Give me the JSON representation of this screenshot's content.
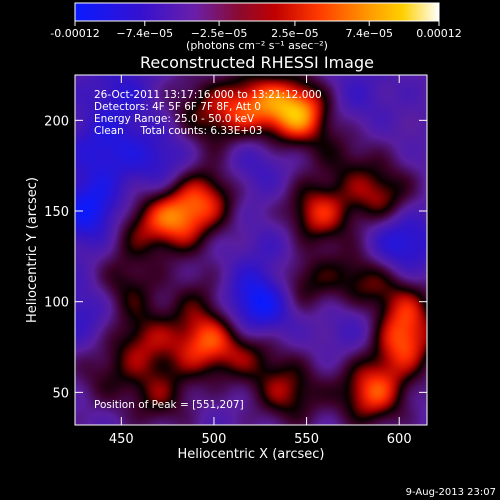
{
  "chart_data": {
    "type": "heatmap",
    "title": "Reconstructed RHESSI Image",
    "xlabel": "Heliocentric X (arcsec)",
    "ylabel": "Heliocentric Y (arcsec)",
    "xlim": [
      425,
      615
    ],
    "ylim": [
      32,
      225
    ],
    "x_ticks": [
      450,
      500,
      550,
      600
    ],
    "y_ticks": [
      50,
      100,
      150,
      200
    ],
    "x_tick_labels": [
      "450",
      "500",
      "550",
      "600"
    ],
    "y_tick_labels": [
      "50",
      "100",
      "150",
      "200"
    ],
    "colorbar": {
      "min": -0.00012,
      "max": 0.00012,
      "ticks": [
        -0.00012,
        -7.4e-05,
        -2.5e-05,
        2.5e-05,
        7.4e-05,
        0.00012
      ],
      "tick_labels": [
        "-0.00012",
        "−7.4e−05",
        "−2.5e−05",
        "2.5e−05",
        "7.4e−05",
        "0.00012"
      ],
      "unit_label": "(photons cm⁻² s⁻¹ asec⁻²)",
      "colors": [
        "#1020ff",
        "#3a10c8",
        "#6a22a8",
        "#a00000",
        "#ff3000",
        "#ff9a00",
        "#ffd400",
        "#ffffff"
      ]
    },
    "annotations": [
      "26-Oct-2011 13:17:16.000 to 13:21:12.000",
      "Detectors: 4F 5F 6F 7F 8F, Att 0",
      "Energy Range: 25.0 - 50.0 keV",
      "Clean     Total counts: 6.33E+03"
    ],
    "peak_label": "Position of Peak = [551,207]",
    "peak": [
      551,
      207
    ],
    "sources": [
      {
        "x": 545,
        "y": 205,
        "value": 1.0
      },
      {
        "x": 520,
        "y": 210,
        "value": 0.65
      },
      {
        "x": 500,
        "y": 200,
        "value": 0.4
      },
      {
        "x": 480,
        "y": 146,
        "value": 0.78
      },
      {
        "x": 497,
        "y": 160,
        "value": 0.55
      },
      {
        "x": 455,
        "y": 142,
        "value": 0.45
      },
      {
        "x": 555,
        "y": 148,
        "value": 0.72
      },
      {
        "x": 590,
        "y": 158,
        "value": 0.6
      },
      {
        "x": 452,
        "y": 108,
        "value": 0.42
      },
      {
        "x": 493,
        "y": 102,
        "value": 0.3
      },
      {
        "x": 545,
        "y": 112,
        "value": 0.6
      },
      {
        "x": 580,
        "y": 112,
        "value": 0.55
      },
      {
        "x": 602,
        "y": 97,
        "value": 0.5
      },
      {
        "x": 462,
        "y": 78,
        "value": 0.5
      },
      {
        "x": 495,
        "y": 77,
        "value": 0.72
      },
      {
        "x": 520,
        "y": 72,
        "value": 0.4
      },
      {
        "x": 602,
        "y": 77,
        "value": 0.7
      },
      {
        "x": 540,
        "y": 50,
        "value": 0.55
      },
      {
        "x": 585,
        "y": 50,
        "value": 0.78
      },
      {
        "x": 470,
        "y": 48,
        "value": 0.45
      },
      {
        "x": 440,
        "y": 60,
        "value": 0.3
      },
      {
        "x": 570,
        "y": 180,
        "value": 0.3
      },
      {
        "x": 485,
        "y": 212,
        "value": 0.2
      },
      {
        "x": 440,
        "y": 185,
        "value": -0.4
      },
      {
        "x": 435,
        "y": 150,
        "value": -0.7
      },
      {
        "x": 470,
        "y": 178,
        "value": -0.35
      },
      {
        "x": 525,
        "y": 100,
        "value": -0.8
      },
      {
        "x": 540,
        "y": 128,
        "value": -0.3
      },
      {
        "x": 600,
        "y": 133,
        "value": -0.55
      },
      {
        "x": 580,
        "y": 90,
        "value": -0.3
      },
      {
        "x": 575,
        "y": 212,
        "value": -0.2
      },
      {
        "x": 520,
        "y": 175,
        "value": -0.25
      },
      {
        "x": 450,
        "y": 215,
        "value": -0.3
      },
      {
        "x": 430,
        "y": 95,
        "value": -0.3
      }
    ]
  },
  "footer": {
    "date": "9-Aug-2013 23:07"
  }
}
